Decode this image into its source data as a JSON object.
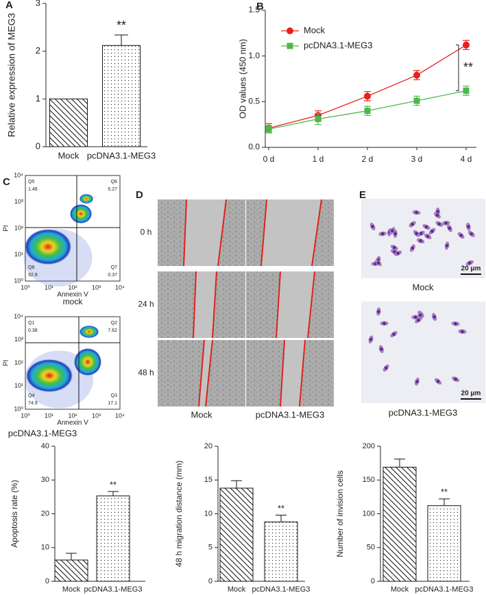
{
  "chart_data": [
    {
      "type": "bar",
      "panel_label": "A",
      "y_label": "Relative expression of MEG3",
      "categories": [
        "Mock",
        "pcDNA3.1-MEG3"
      ],
      "values": [
        1,
        2.12
      ],
      "errors": [
        null,
        0.22
      ],
      "patterns": [
        "hatch",
        "dots"
      ],
      "annotation": "**",
      "ylim": [
        0,
        3
      ],
      "yticks": [
        0,
        1,
        2,
        3
      ]
    },
    {
      "type": "line",
      "panel_label": "B",
      "y_label": "OD values (450 nm)",
      "categories": [
        "0 d",
        "1 d",
        "2 d",
        "3 d",
        "4 d"
      ],
      "series": [
        {
          "name": "Mock",
          "color": "#e8201e",
          "marker": "circle",
          "values": [
            0.21,
            0.35,
            0.56,
            0.79,
            1.12
          ],
          "errors": [
            0.05,
            0.05,
            0.05,
            0.05,
            0.05
          ]
        },
        {
          "name": "pcDNA3.1-MEG3",
          "color": "#4cb848",
          "marker": "square",
          "values": [
            0.2,
            0.31,
            0.4,
            0.51,
            0.62
          ],
          "errors": [
            0.04,
            0.06,
            0.05,
            0.05,
            0.05
          ]
        }
      ],
      "annotation": "**",
      "legend": "top-left",
      "ylim": [
        0,
        1.5
      ],
      "yticks": [
        {
          "value": 0,
          "label": "0.0"
        },
        0.5,
        {
          "value": 1,
          "label": "1.0"
        },
        1.5
      ]
    },
    {
      "type": "bar",
      "y_label": "Apoptosis rate (%)",
      "categories": [
        "Mock",
        "pcDNA3.1-MEG3"
      ],
      "values": [
        6.3,
        25.3
      ],
      "errors": [
        2.0,
        1.3
      ],
      "patterns": [
        "hatch",
        "dots"
      ],
      "annotation": "**",
      "ylim": [
        0,
        40
      ],
      "yticks": [
        0,
        10,
        20,
        30,
        40
      ]
    },
    {
      "type": "bar",
      "y_label": "48 h migration distance (mm)",
      "categories": [
        "Mock",
        "pcDNA3.1-MEG3"
      ],
      "values": [
        13.8,
        8.8
      ],
      "errors": [
        1.1,
        1.0
      ],
      "patterns": [
        "hatch",
        "dots"
      ],
      "annotation": "**",
      "ylim": [
        0,
        20
      ],
      "yticks": [
        0,
        5,
        10,
        15,
        20
      ]
    },
    {
      "type": "bar",
      "y_label": "Number of  invision cells",
      "categories": [
        "Mock",
        "pcDNA3.1-MEG3"
      ],
      "values": [
        169,
        112
      ],
      "errors": [
        12,
        10
      ],
      "patterns": [
        "hatch",
        "dots"
      ],
      "annotation": "**",
      "ylim": [
        0,
        200
      ],
      "yticks": [
        0,
        50,
        100,
        150,
        200
      ]
    }
  ],
  "flow_cytometry": {
    "panel_label": "C",
    "y_label": "PI",
    "x_label": "Annexin V",
    "tick_labels": [
      "10⁰",
      "10¹",
      "10²",
      "10³",
      "10⁴"
    ],
    "plots": [
      {
        "title": "mock",
        "quadrants": [
          {
            "name": "Q5",
            "value": 1.48
          },
          {
            "name": "Q6",
            "value": 5.27
          },
          {
            "name": "Q8",
            "value": 92.9
          },
          {
            "name": "Q7",
            "value": 0.37
          }
        ]
      },
      {
        "title": "pcDNA3.1-MEG3",
        "quadrants": [
          {
            "name": "Q1",
            "value": 0.38
          },
          {
            "name": "Q2",
            "value": 7.62
          },
          {
            "name": "Q4",
            "value": 74.9
          },
          {
            "name": "Q3",
            "value": 17.1
          }
        ]
      }
    ]
  },
  "wound_healing": {
    "panel_label": "D",
    "rows": [
      "0 h",
      "24 h",
      "48 h"
    ],
    "columns": [
      "Mock",
      "pcDNA3.1-MEG3"
    ]
  },
  "cell_images": {
    "panel_label": "E",
    "images": [
      {
        "label": "Mock",
        "scale_bar": "20 μm"
      },
      {
        "label": "pcDNA3.1-MEG3",
        "scale_bar": "20 μm"
      }
    ]
  }
}
